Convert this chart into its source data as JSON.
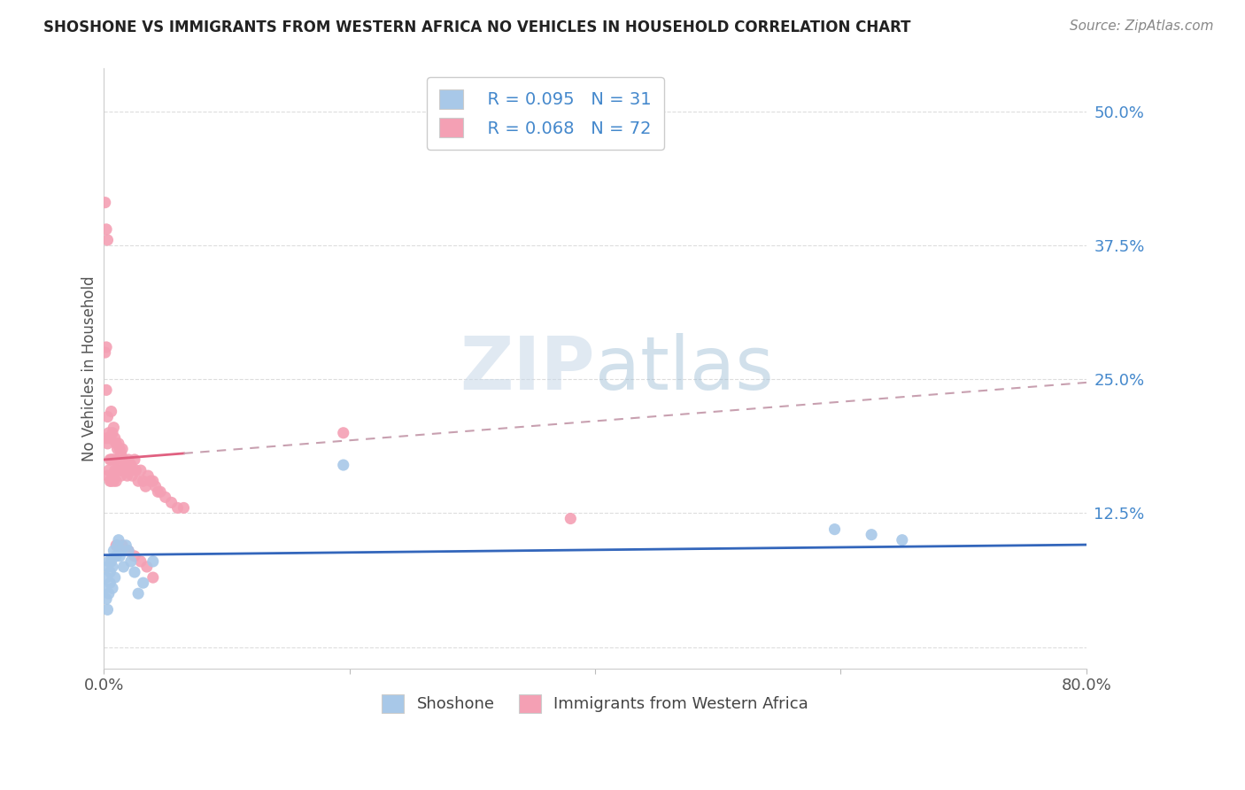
{
  "title": "SHOSHONE VS IMMIGRANTS FROM WESTERN AFRICA NO VEHICLES IN HOUSEHOLD CORRELATION CHART",
  "source": "Source: ZipAtlas.com",
  "ylabel": "No Vehicles in Household",
  "xlim": [
    0.0,
    0.8
  ],
  "ylim": [
    -0.02,
    0.54
  ],
  "yticks": [
    0.0,
    0.125,
    0.25,
    0.375,
    0.5
  ],
  "ytick_labels": [
    "",
    "12.5%",
    "25.0%",
    "37.5%",
    "50.0%"
  ],
  "xticks": [
    0.0,
    0.2,
    0.4,
    0.6,
    0.8
  ],
  "xtick_labels": [
    "0.0%",
    "",
    "",
    "",
    "80.0%"
  ],
  "legend_r1": "R = 0.095",
  "legend_n1": "N = 31",
  "legend_r2": "R = 0.068",
  "legend_n2": "N = 72",
  "shoshone_color": "#a8c8e8",
  "immigrants_color": "#f4a0b4",
  "shoshone_line_color": "#3366bb",
  "immigrants_line_color": "#e06080",
  "trendline_extend_color": "#c8a0b0",
  "watermark_zip": "ZIP",
  "watermark_atlas": "atlas",
  "shoshone_x": [
    0.001,
    0.002,
    0.002,
    0.003,
    0.003,
    0.004,
    0.004,
    0.005,
    0.005,
    0.006,
    0.007,
    0.007,
    0.008,
    0.009,
    0.01,
    0.011,
    0.012,
    0.013,
    0.014,
    0.016,
    0.018,
    0.02,
    0.022,
    0.025,
    0.028,
    0.032,
    0.04,
    0.195,
    0.595,
    0.625,
    0.65
  ],
  "shoshone_y": [
    0.055,
    0.045,
    0.065,
    0.035,
    0.075,
    0.05,
    0.08,
    0.06,
    0.07,
    0.08,
    0.075,
    0.055,
    0.09,
    0.065,
    0.085,
    0.095,
    0.1,
    0.085,
    0.09,
    0.075,
    0.095,
    0.09,
    0.08,
    0.07,
    0.05,
    0.06,
    0.08,
    0.17,
    0.11,
    0.105,
    0.1
  ],
  "immigrants_x": [
    0.001,
    0.001,
    0.002,
    0.002,
    0.002,
    0.003,
    0.003,
    0.003,
    0.004,
    0.004,
    0.005,
    0.005,
    0.005,
    0.006,
    0.006,
    0.006,
    0.007,
    0.007,
    0.007,
    0.008,
    0.008,
    0.008,
    0.009,
    0.009,
    0.01,
    0.01,
    0.01,
    0.011,
    0.011,
    0.012,
    0.012,
    0.013,
    0.013,
    0.014,
    0.014,
    0.015,
    0.015,
    0.016,
    0.017,
    0.018,
    0.019,
    0.02,
    0.021,
    0.022,
    0.023,
    0.025,
    0.026,
    0.028,
    0.03,
    0.032,
    0.034,
    0.036,
    0.038,
    0.04,
    0.042,
    0.044,
    0.046,
    0.05,
    0.055,
    0.06,
    0.065,
    0.01,
    0.015,
    0.02,
    0.025,
    0.03,
    0.035,
    0.04,
    0.195,
    0.38,
    0.002,
    0.003
  ],
  "immigrants_y": [
    0.415,
    0.275,
    0.28,
    0.195,
    0.24,
    0.215,
    0.16,
    0.19,
    0.2,
    0.165,
    0.195,
    0.175,
    0.155,
    0.22,
    0.175,
    0.155,
    0.2,
    0.175,
    0.16,
    0.205,
    0.175,
    0.155,
    0.195,
    0.165,
    0.19,
    0.175,
    0.155,
    0.185,
    0.165,
    0.19,
    0.17,
    0.185,
    0.165,
    0.18,
    0.16,
    0.185,
    0.165,
    0.175,
    0.165,
    0.17,
    0.16,
    0.175,
    0.165,
    0.17,
    0.16,
    0.175,
    0.165,
    0.155,
    0.165,
    0.155,
    0.15,
    0.16,
    0.155,
    0.155,
    0.15,
    0.145,
    0.145,
    0.14,
    0.135,
    0.13,
    0.13,
    0.095,
    0.095,
    0.09,
    0.085,
    0.08,
    0.075,
    0.065,
    0.2,
    0.12,
    0.39,
    0.38
  ]
}
